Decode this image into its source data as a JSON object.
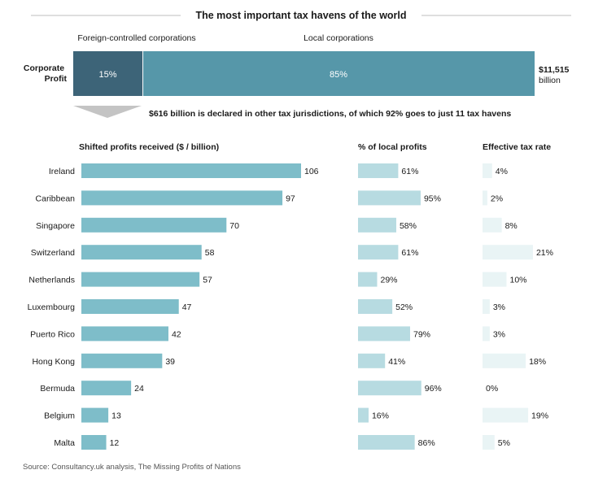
{
  "title": "The most important tax havens of the world",
  "colors": {
    "foreign_segment": "#3d6478",
    "local_segment": "#5697a9",
    "shifted_bar": "#7ebdc9",
    "local_profit_bar": "#b7dbe1",
    "tax_rate_bar": "#e9f4f5",
    "arrow": "#c4c4c4",
    "rule": "#bdbdbd"
  },
  "corporate_profit": {
    "row_label": "Corporate Profit",
    "foreign_label": "Foreign-controlled corporations",
    "local_label": "Local corporations",
    "foreign_share": 15,
    "local_share": 85,
    "foreign_text": "15%",
    "local_text": "85%",
    "total_value": "$11,515",
    "total_unit": "billion"
  },
  "callout": "$616 billion is declared in other tax jurisdictions, of which 92% goes to just 11 tax havens",
  "source": "Source: Consultancy.uk analysis, The Missing Profits of Nations",
  "chart_data": [
    {
      "type": "bar",
      "title": "Shifted profits received ($  / billion)",
      "categories": [
        "Ireland",
        "Caribbean",
        "Singapore",
        "Switzerland",
        "Netherlands",
        "Luxembourg",
        "Puerto Rico",
        "Hong Kong",
        "Bermuda",
        "Belgium",
        "Malta"
      ],
      "values": [
        106,
        97,
        70,
        58,
        57,
        47,
        42,
        39,
        24,
        13,
        12
      ],
      "labels": [
        "106",
        "97",
        "70",
        "58",
        "57",
        "47",
        "42",
        "39",
        "24",
        "13",
        "12"
      ]
    },
    {
      "type": "bar",
      "title": "% of local profits",
      "categories": [
        "Ireland",
        "Caribbean",
        "Singapore",
        "Switzerland",
        "Netherlands",
        "Luxembourg",
        "Puerto Rico",
        "Hong Kong",
        "Bermuda",
        "Belgium",
        "Malta"
      ],
      "values": [
        61,
        95,
        58,
        61,
        29,
        52,
        79,
        41,
        96,
        16,
        86
      ],
      "labels": [
        "61%",
        "95%",
        "58%",
        "61%",
        "29%",
        "52%",
        "79%",
        "41%",
        "96%",
        "16%",
        "86%"
      ]
    },
    {
      "type": "bar",
      "title": "Effective tax rate",
      "categories": [
        "Ireland",
        "Caribbean",
        "Singapore",
        "Switzerland",
        "Netherlands",
        "Luxembourg",
        "Puerto Rico",
        "Hong Kong",
        "Bermuda",
        "Belgium",
        "Malta"
      ],
      "values": [
        4,
        2,
        8,
        21,
        10,
        3,
        3,
        18,
        0,
        19,
        5
      ],
      "labels": [
        "4%",
        "2%",
        "8%",
        "21%",
        "10%",
        "3%",
        "3%",
        "18%",
        "0%",
        "19%",
        "5%"
      ]
    }
  ]
}
